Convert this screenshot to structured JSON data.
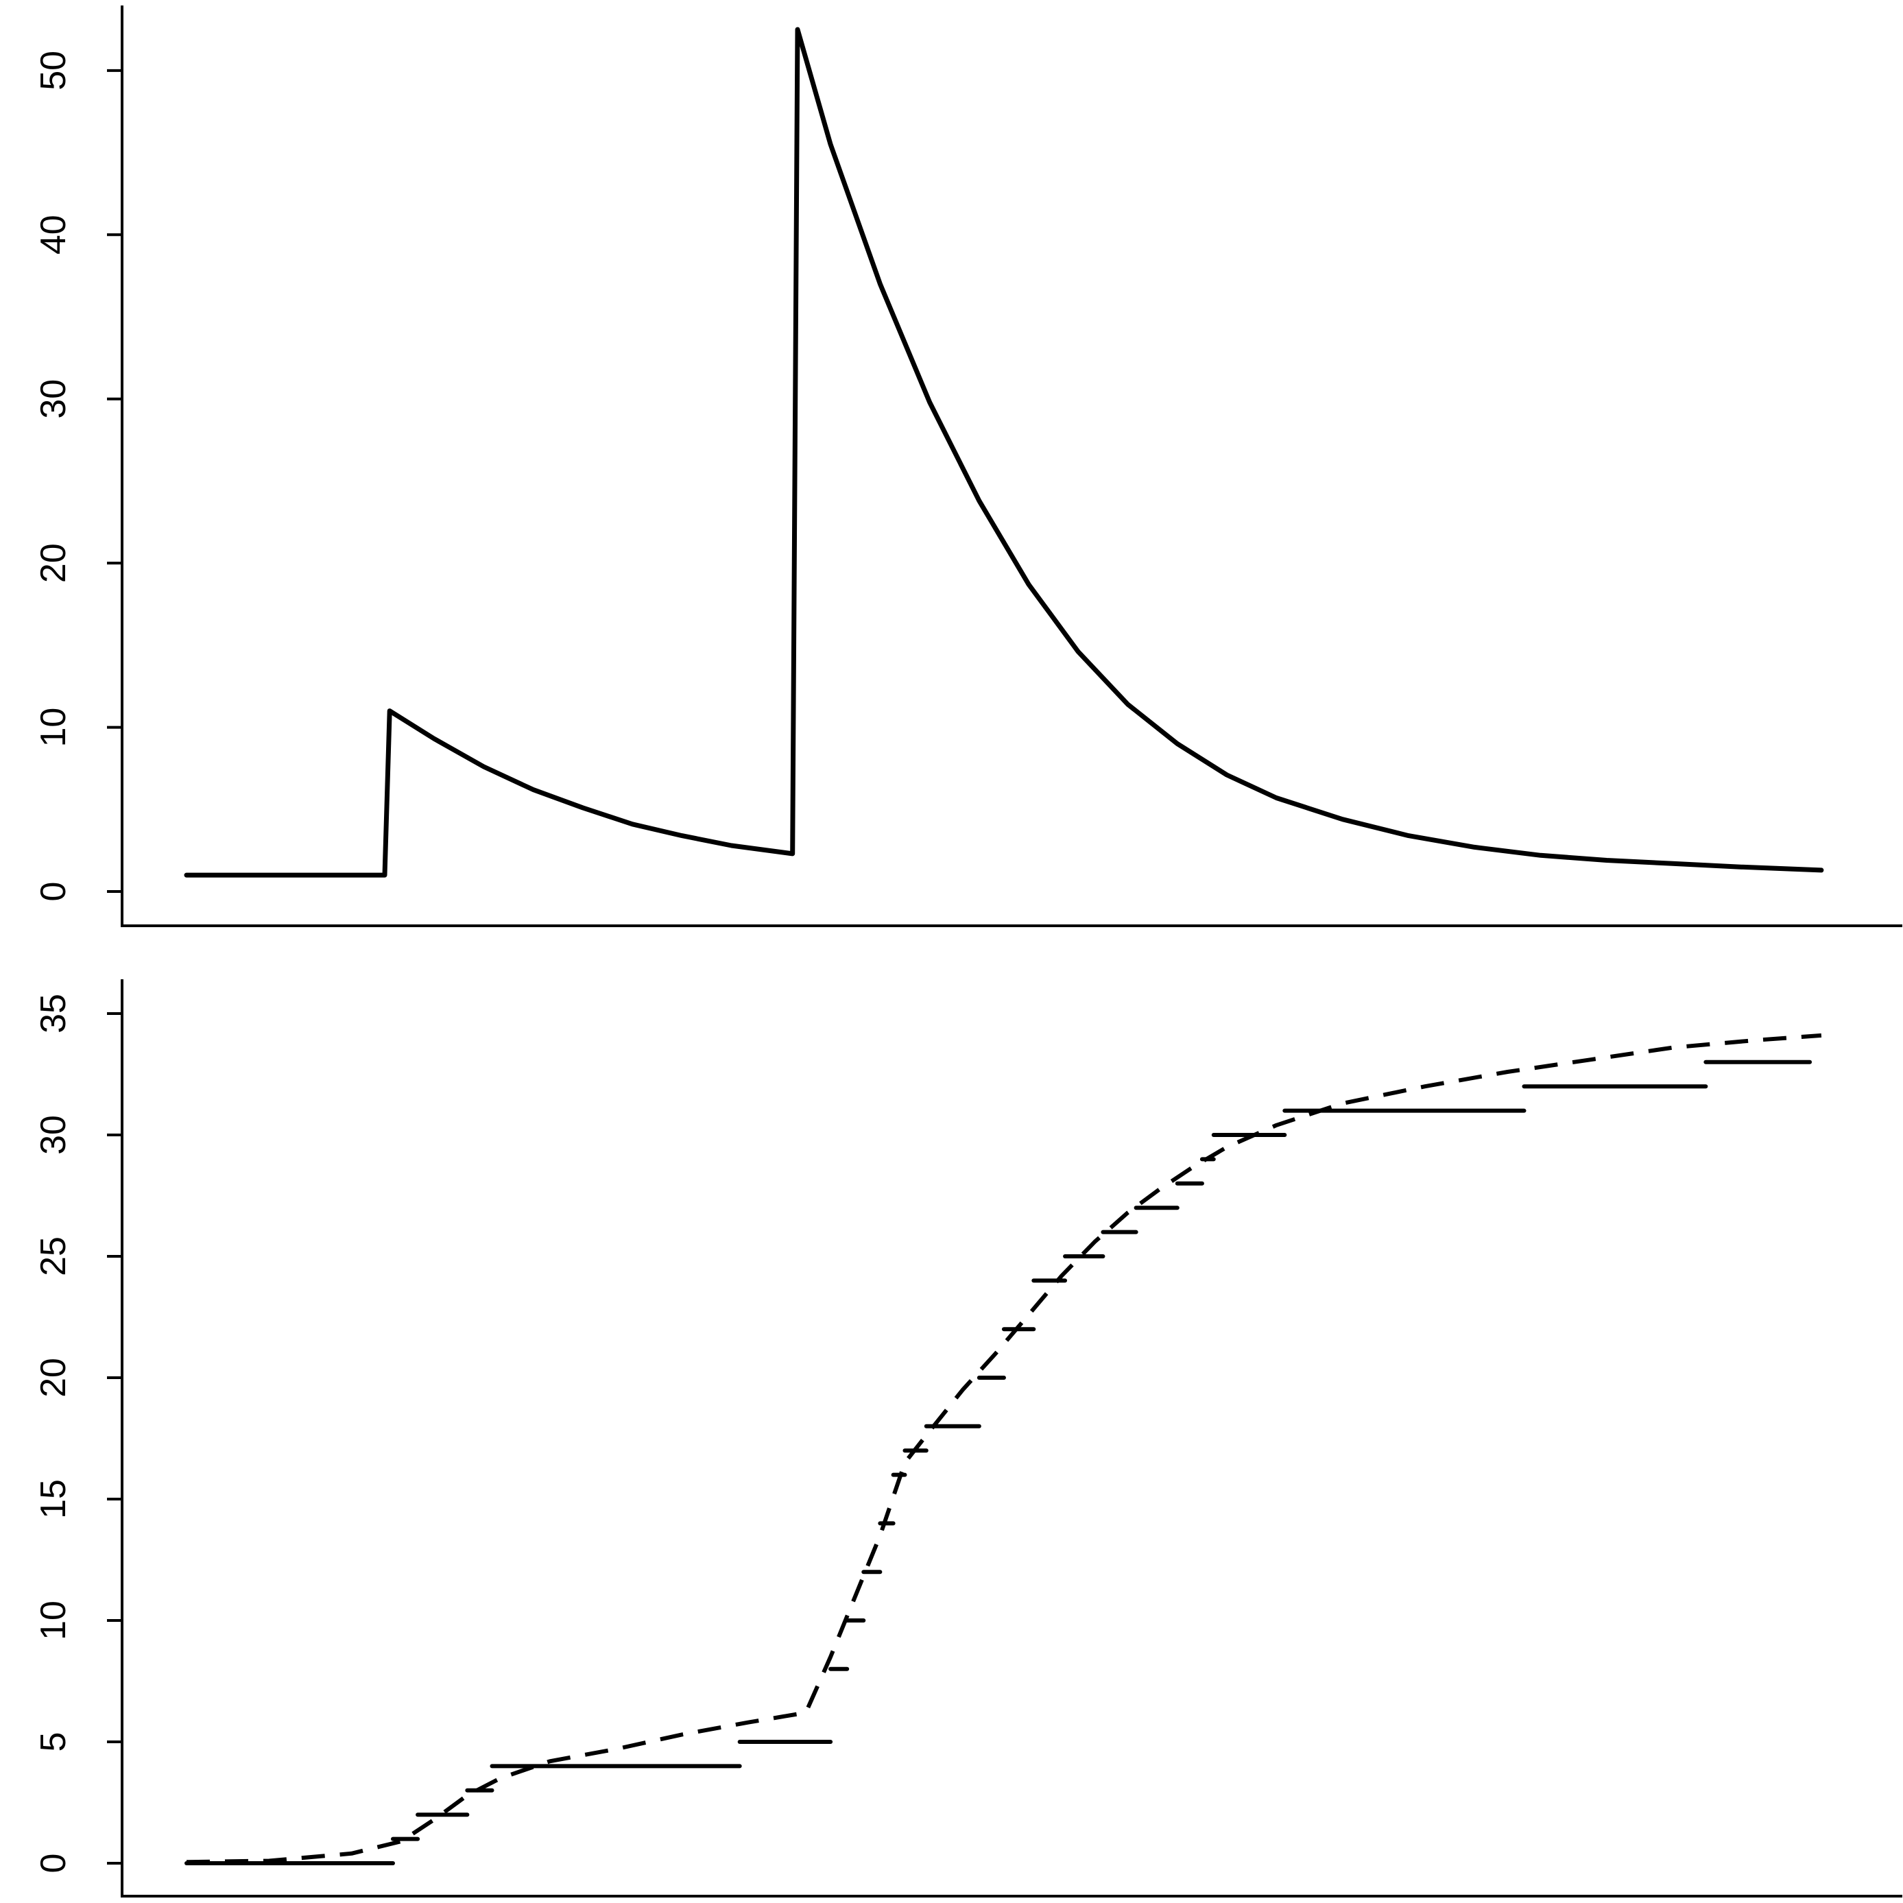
{
  "chart_data": [
    {
      "type": "line",
      "title": "",
      "xlabel": "",
      "ylabel": "",
      "xlim": [
        0,
        100
      ],
      "ylim": [
        0,
        52
      ],
      "yticks": [
        0,
        10,
        20,
        30,
        40,
        50
      ],
      "ytick_labels": [
        "0",
        "10",
        "20",
        "30",
        "40",
        "50"
      ],
      "grid": false,
      "series": [
        {
          "style": "solid",
          "color": "#000000",
          "points": [
            [
              0,
              1
            ],
            [
              12,
              1
            ],
            [
              12.3,
              11
            ],
            [
              15,
              9.3
            ],
            [
              18,
              7.6
            ],
            [
              21,
              6.2
            ],
            [
              24,
              5.1
            ],
            [
              27,
              4.1
            ],
            [
              30,
              3.4
            ],
            [
              33,
              2.8
            ],
            [
              36.7,
              2.3
            ],
            [
              37,
              52.5
            ],
            [
              39,
              45.5
            ],
            [
              42,
              37.0
            ],
            [
              45,
              29.8
            ],
            [
              48,
              23.8
            ],
            [
              51,
              18.7
            ],
            [
              54,
              14.6
            ],
            [
              57,
              11.4
            ],
            [
              60,
              9.0
            ],
            [
              63,
              7.1
            ],
            [
              66,
              5.7
            ],
            [
              70,
              4.4
            ],
            [
              74,
              3.4
            ],
            [
              78,
              2.7
            ],
            [
              82,
              2.2
            ],
            [
              86,
              1.9
            ],
            [
              90,
              1.7
            ],
            [
              94,
              1.5
            ],
            [
              99,
              1.3
            ]
          ]
        }
      ]
    },
    {
      "type": "line",
      "title": "",
      "xlabel": "",
      "ylabel": "",
      "xlim": [
        0,
        100
      ],
      "ylim": [
        0,
        35
      ],
      "yticks": [
        0,
        5,
        10,
        15,
        20,
        25,
        30,
        35
      ],
      "ytick_labels": [
        "0",
        "5",
        "10",
        "15",
        "20",
        "25",
        "30",
        "35"
      ],
      "grid": false,
      "series": [
        {
          "style": "step-segments",
          "color": "#000000",
          "segments": [
            [
              0,
              12.5,
              0
            ],
            [
              12.5,
              14,
              1
            ],
            [
              14,
              17,
              2
            ],
            [
              17,
              18.5,
              3
            ],
            [
              18.5,
              33.5,
              4
            ],
            [
              33.5,
              39,
              5
            ],
            [
              39,
              40,
              8
            ],
            [
              40,
              41,
              10
            ],
            [
              41,
              42,
              12
            ],
            [
              42,
              42.8,
              14
            ],
            [
              42.8,
              43.5,
              16
            ],
            [
              43.5,
              44.8,
              17
            ],
            [
              44.8,
              48,
              18
            ],
            [
              48,
              49.5,
              20
            ],
            [
              49.5,
              51.3,
              22
            ],
            [
              51.3,
              53.2,
              24
            ],
            [
              53.2,
              55.5,
              25
            ],
            [
              55.5,
              57.5,
              26
            ],
            [
              57.5,
              60,
              27
            ],
            [
              60,
              61.5,
              28
            ],
            [
              61.5,
              62.2,
              29
            ],
            [
              62.2,
              66.5,
              30
            ],
            [
              66.5,
              81,
              31
            ],
            [
              81,
              92,
              32
            ],
            [
              92,
              98.3,
              33
            ]
          ]
        },
        {
          "style": "dashed",
          "color": "#000000",
          "points": [
            [
              0,
              0.05
            ],
            [
              5,
              0.1
            ],
            [
              10,
              0.4
            ],
            [
              13,
              0.9
            ],
            [
              15,
              1.8
            ],
            [
              17,
              2.8
            ],
            [
              19,
              3.5
            ],
            [
              22,
              4.2
            ],
            [
              26,
              4.7
            ],
            [
              30,
              5.3
            ],
            [
              34,
              5.8
            ],
            [
              37.5,
              6.2
            ],
            [
              39,
              8.5
            ],
            [
              40.5,
              11
            ],
            [
              42,
              13.5
            ],
            [
              43.5,
              16.5
            ],
            [
              45,
              17.8
            ],
            [
              47,
              19.5
            ],
            [
              49,
              21
            ],
            [
              51,
              22.6
            ],
            [
              53,
              24.2
            ],
            [
              55,
              25.6
            ],
            [
              57,
              26.8
            ],
            [
              59,
              27.8
            ],
            [
              61,
              28.7
            ],
            [
              63,
              29.5
            ],
            [
              66,
              30.4
            ],
            [
              70,
              31.3
            ],
            [
              75,
              32.0
            ],
            [
              80,
              32.6
            ],
            [
              85,
              33.1
            ],
            [
              90,
              33.6
            ],
            [
              95,
              33.9
            ],
            [
              99,
              34.1
            ]
          ]
        }
      ]
    }
  ]
}
